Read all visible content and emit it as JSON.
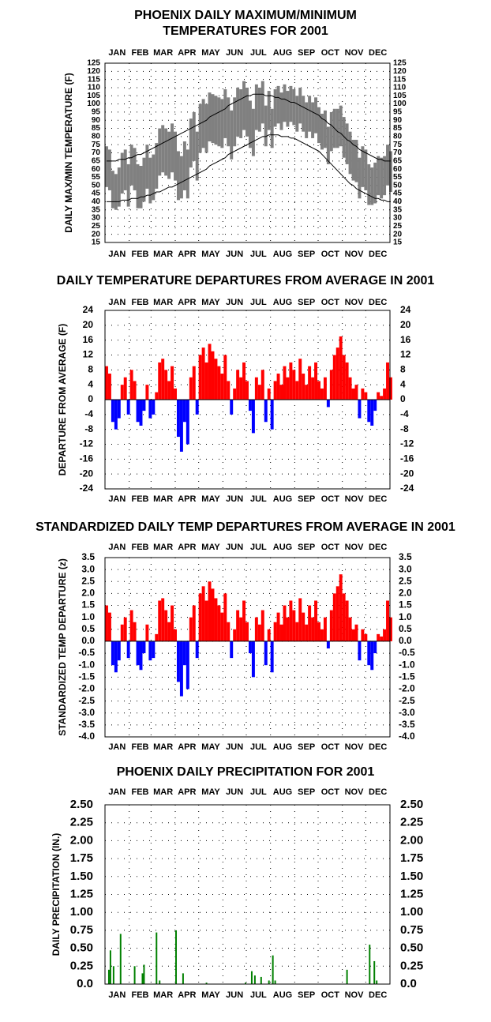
{
  "chart_data": [
    {
      "type": "range",
      "title": [
        "PHOENIX DAILY MAXIMUM/MINIMUM",
        "TEMPERATURES FOR 2001"
      ],
      "y_label": "DAILY MAX/MIN TEMPERATURE (F)",
      "categories": [
        "JAN",
        "FEB",
        "MAR",
        "APR",
        "MAY",
        "JUN",
        "JUL",
        "AUG",
        "SEP",
        "OCT",
        "NOV",
        "DEC"
      ],
      "xlim": [
        1,
        366
      ],
      "xticks": [
        1,
        32,
        60,
        91,
        121,
        152,
        182,
        213,
        244,
        274,
        305,
        335,
        366
      ],
      "ylim": [
        15,
        125
      ],
      "yticks": [
        15,
        20,
        25,
        30,
        35,
        40,
        45,
        50,
        55,
        60,
        65,
        70,
        75,
        80,
        85,
        90,
        95,
        100,
        105,
        110,
        115,
        120,
        125
      ],
      "grid": true,
      "color": "#808080",
      "normal_color": "#000000",
      "x": [
        1,
        5,
        9,
        13,
        17,
        21,
        25,
        29,
        33,
        37,
        41,
        45,
        49,
        53,
        57,
        61,
        65,
        69,
        73,
        77,
        81,
        85,
        89,
        93,
        97,
        101,
        105,
        109,
        113,
        117,
        121,
        125,
        129,
        133,
        137,
        141,
        145,
        149,
        153,
        157,
        161,
        165,
        169,
        173,
        177,
        181,
        185,
        189,
        193,
        197,
        201,
        205,
        209,
        213,
        217,
        221,
        225,
        229,
        233,
        237,
        241,
        245,
        249,
        253,
        257,
        261,
        265,
        269,
        273,
        277,
        281,
        285,
        289,
        293,
        297,
        301,
        305,
        309,
        313,
        317,
        321,
        325,
        329,
        333,
        337,
        341,
        345,
        349,
        353,
        357,
        361,
        365
      ],
      "high": [
        74,
        72,
        59,
        57,
        61,
        70,
        72,
        63,
        75,
        73,
        63,
        62,
        67,
        75,
        67,
        69,
        76,
        85,
        87,
        85,
        83,
        88,
        83,
        71,
        68,
        77,
        72,
        91,
        95,
        83,
        100,
        103,
        100,
        107,
        106,
        105,
        104,
        103,
        109,
        104,
        96,
        104,
        110,
        109,
        114,
        110,
        102,
        97,
        112,
        110,
        114,
        99,
        108,
        97,
        109,
        111,
        107,
        112,
        108,
        111,
        109,
        105,
        110,
        105,
        101,
        105,
        101,
        104,
        98,
        94,
        96,
        86,
        95,
        97,
        97,
        99,
        92,
        88,
        83,
        78,
        78,
        67,
        74,
        72,
        63,
        61,
        64,
        68,
        67,
        68,
        75,
        71
      ],
      "low": [
        49,
        47,
        36,
        35,
        37,
        45,
        47,
        37,
        50,
        47,
        36,
        36,
        40,
        48,
        39,
        41,
        48,
        56,
        58,
        56,
        54,
        58,
        53,
        41,
        42,
        47,
        42,
        61,
        65,
        53,
        70,
        73,
        70,
        77,
        76,
        75,
        74,
        73,
        79,
        74,
        66,
        74,
        80,
        79,
        84,
        80,
        73,
        68,
        84,
        83,
        88,
        74,
        84,
        73,
        86,
        88,
        84,
        89,
        86,
        89,
        87,
        83,
        88,
        83,
        79,
        83,
        79,
        82,
        76,
        72,
        73,
        63,
        71,
        73,
        73,
        74,
        67,
        63,
        57,
        53,
        52,
        42,
        49,
        47,
        38,
        38,
        39,
        44,
        42,
        44,
        50,
        46
      ],
      "normal_high": [
        65,
        65,
        65,
        65,
        66,
        66,
        66,
        67,
        67,
        68,
        69,
        69,
        70,
        71,
        72,
        73,
        74,
        75,
        76,
        77,
        78,
        79,
        80,
        81,
        82,
        83,
        84,
        85,
        86,
        87,
        88,
        89,
        90,
        92,
        93,
        94,
        95,
        96,
        97,
        99,
        100,
        101,
        102,
        103,
        104,
        105,
        105,
        106,
        106,
        106,
        106,
        105,
        105,
        105,
        104,
        104,
        103,
        103,
        102,
        101,
        101,
        100,
        99,
        98,
        97,
        96,
        95,
        94,
        93,
        91,
        90,
        88,
        87,
        85,
        83,
        82,
        80,
        78,
        77,
        75,
        74,
        72,
        71,
        70,
        69,
        68,
        67,
        66,
        66,
        65,
        65,
        65
      ],
      "normal_low": [
        40,
        40,
        40,
        40,
        40,
        41,
        41,
        41,
        42,
        42,
        42,
        43,
        43,
        44,
        44,
        45,
        46,
        46,
        47,
        48,
        49,
        49,
        50,
        51,
        52,
        53,
        54,
        55,
        56,
        57,
        58,
        59,
        60,
        62,
        63,
        64,
        65,
        66,
        67,
        69,
        70,
        71,
        72,
        73,
        74,
        75,
        76,
        77,
        78,
        79,
        80,
        80,
        81,
        81,
        81,
        81,
        80,
        80,
        80,
        79,
        79,
        78,
        77,
        76,
        75,
        74,
        73,
        72,
        71,
        69,
        67,
        65,
        63,
        61,
        59,
        57,
        55,
        53,
        51,
        50,
        48,
        47,
        46,
        45,
        44,
        43,
        42,
        42,
        41,
        41,
        40,
        40
      ]
    },
    {
      "type": "bar",
      "title": "DAILY TEMPERATURE DEPARTURES FROM AVERAGE IN 2001",
      "y_label": "DEPARTURE FROM AVERAGE (F)",
      "categories": [
        "JAN",
        "FEB",
        "MAR",
        "APR",
        "MAY",
        "JUN",
        "JUL",
        "AUG",
        "SEP",
        "OCT",
        "NOV",
        "DEC"
      ],
      "xlim": [
        1,
        366
      ],
      "xticks": [
        1,
        32,
        60,
        91,
        121,
        152,
        182,
        213,
        244,
        274,
        305,
        335,
        366
      ],
      "ylim": [
        -24,
        24
      ],
      "yticks": [
        -24,
        -20,
        -16,
        -12,
        -8,
        -4,
        0,
        4,
        8,
        12,
        16,
        20,
        24
      ],
      "grid": true,
      "pos_color": "#ff0000",
      "neg_color": "#0000ff",
      "x": [
        1,
        5,
        9,
        13,
        17,
        21,
        25,
        29,
        33,
        37,
        41,
        45,
        49,
        53,
        57,
        61,
        65,
        69,
        73,
        77,
        81,
        85,
        89,
        93,
        97,
        101,
        105,
        109,
        113,
        117,
        121,
        125,
        129,
        133,
        137,
        141,
        145,
        149,
        153,
        157,
        161,
        165,
        169,
        173,
        177,
        181,
        185,
        189,
        193,
        197,
        201,
        205,
        209,
        213,
        217,
        221,
        225,
        229,
        233,
        237,
        241,
        245,
        249,
        253,
        257,
        261,
        265,
        269,
        273,
        277,
        281,
        285,
        289,
        293,
        297,
        301,
        305,
        309,
        313,
        317,
        321,
        325,
        329,
        333,
        337,
        341,
        345,
        349,
        353,
        357,
        361,
        365
      ],
      "values": [
        9,
        7,
        -6,
        -8,
        -5,
        4,
        6,
        -4,
        8,
        5,
        -6,
        -7,
        -3,
        4,
        -5,
        -4,
        2,
        10,
        11,
        8,
        5,
        9,
        3,
        -10,
        -14,
        -6,
        -12,
        6,
        9,
        -4,
        12,
        14,
        10,
        15,
        13,
        11,
        9,
        7,
        12,
        5,
        -4,
        3,
        8,
        6,
        10,
        5,
        -3,
        -9,
        6,
        4,
        8,
        -6,
        3,
        -8,
        5,
        7,
        4,
        9,
        6,
        10,
        8,
        5,
        11,
        7,
        4,
        9,
        6,
        10,
        5,
        3,
        6,
        -2,
        8,
        12,
        14,
        17,
        12,
        10,
        6,
        3,
        4,
        -5,
        3,
        2,
        -6,
        -7,
        -3,
        2,
        1,
        3,
        10,
        6
      ]
    },
    {
      "type": "bar",
      "title": "STANDARDIZED DAILY TEMP DEPARTURES FROM AVERAGE IN 2001",
      "y_label": "STANDARDIZED TEMP DEPARTURE (z)",
      "categories": [
        "JAN",
        "FEB",
        "MAR",
        "APR",
        "MAY",
        "JUN",
        "JUL",
        "AUG",
        "SEP",
        "OCT",
        "NOV",
        "DEC"
      ],
      "xlim": [
        1,
        366
      ],
      "xticks": [
        1,
        32,
        60,
        91,
        121,
        152,
        182,
        213,
        244,
        274,
        305,
        335,
        366
      ],
      "ylim": [
        -4,
        3.5
      ],
      "yticks": [
        {
          "value": -4,
          "label": "-4.0"
        },
        -3.5,
        {
          "value": -3,
          "label": "-3.0"
        },
        -2.5,
        {
          "value": -2,
          "label": "-2.0"
        },
        -1.5,
        {
          "value": -1,
          "label": "-1.0"
        },
        -0.5,
        {
          "value": 0,
          "label": "0.0"
        },
        0.5,
        {
          "value": 1,
          "label": "1.0"
        },
        1.5,
        {
          "value": 2,
          "label": "2.0"
        },
        2.5,
        {
          "value": 3,
          "label": "3.0"
        },
        3.5
      ],
      "grid": true,
      "pos_color": "#ff0000",
      "neg_color": "#0000ff",
      "x": [
        1,
        5,
        9,
        13,
        17,
        21,
        25,
        29,
        33,
        37,
        41,
        45,
        49,
        53,
        57,
        61,
        65,
        69,
        73,
        77,
        81,
        85,
        89,
        93,
        97,
        101,
        105,
        109,
        113,
        117,
        121,
        125,
        129,
        133,
        137,
        141,
        145,
        149,
        153,
        157,
        161,
        165,
        169,
        173,
        177,
        181,
        185,
        189,
        193,
        197,
        201,
        205,
        209,
        213,
        217,
        221,
        225,
        229,
        233,
        237,
        241,
        245,
        249,
        253,
        257,
        261,
        265,
        269,
        273,
        277,
        281,
        285,
        289,
        293,
        297,
        301,
        305,
        309,
        313,
        317,
        321,
        325,
        329,
        333,
        337,
        341,
        345,
        349,
        353,
        357,
        361,
        365
      ],
      "values": [
        1.5,
        1.2,
        -1.0,
        -1.3,
        -0.8,
        0.7,
        1.0,
        -0.7,
        1.3,
        0.8,
        -1.0,
        -1.2,
        -0.5,
        0.7,
        -0.8,
        -0.7,
        0.3,
        1.7,
        1.8,
        1.3,
        0.8,
        1.5,
        0.5,
        -1.7,
        -2.3,
        -1.0,
        -2.0,
        1.0,
        1.5,
        -0.7,
        2.0,
        2.3,
        1.7,
        2.5,
        2.2,
        1.8,
        1.5,
        1.2,
        2.0,
        0.8,
        -0.7,
        0.5,
        1.3,
        1.0,
        1.7,
        0.8,
        -0.5,
        -1.5,
        1.0,
        0.7,
        1.3,
        -1.0,
        0.5,
        -1.3,
        0.8,
        1.2,
        0.7,
        1.5,
        1.0,
        1.7,
        1.3,
        0.8,
        1.8,
        1.2,
        0.7,
        1.5,
        1.0,
        1.7,
        0.8,
        0.5,
        1.0,
        -0.3,
        1.3,
        2.0,
        2.3,
        2.8,
        2.0,
        1.7,
        1.0,
        0.5,
        0.7,
        -0.8,
        0.5,
        0.3,
        -1.0,
        -1.2,
        -0.5,
        0.3,
        0.2,
        0.5,
        1.7,
        1.0
      ]
    },
    {
      "type": "bar",
      "title": "PHOENIX DAILY PRECIPITATION FOR 2001",
      "y_label": "DAILY PRECIPITATION (IN.)",
      "categories": [
        "JAN",
        "FEB",
        "MAR",
        "APR",
        "MAY",
        "JUN",
        "JUL",
        "AUG",
        "SEP",
        "OCT",
        "NOV",
        "DEC"
      ],
      "xlim": [
        1,
        366
      ],
      "xticks": [
        1,
        32,
        60,
        91,
        121,
        152,
        182,
        213,
        244,
        274,
        305,
        335,
        366
      ],
      "ylim": [
        0,
        2.5
      ],
      "yticks": [
        {
          "value": 0,
          "label": "0.0"
        },
        0.25,
        {
          "value": 0.5,
          "label": "0.50"
        },
        0.75,
        {
          "value": 1,
          "label": "1.00"
        },
        1.25,
        {
          "value": 1.5,
          "label": "1.50"
        },
        1.75,
        {
          "value": 2,
          "label": "2.00"
        },
        2.25,
        {
          "value": 2.5,
          "label": "2.50"
        }
      ],
      "grid": true,
      "pos_color": "#008000",
      "neg_color": "#008000",
      "x": [
        5,
        7,
        11,
        20,
        38,
        48,
        50,
        66,
        70,
        91,
        100,
        130,
        180,
        188,
        192,
        200,
        210,
        215,
        218,
        310,
        339,
        345,
        348
      ],
      "values": [
        0.2,
        0.47,
        0.25,
        0.7,
        0.25,
        0.15,
        0.27,
        0.72,
        0.05,
        0.75,
        0.15,
        0.02,
        0.02,
        0.18,
        0.12,
        0.1,
        0.05,
        0.4,
        0.05,
        0.2,
        0.55,
        0.32,
        0.05
      ]
    }
  ]
}
